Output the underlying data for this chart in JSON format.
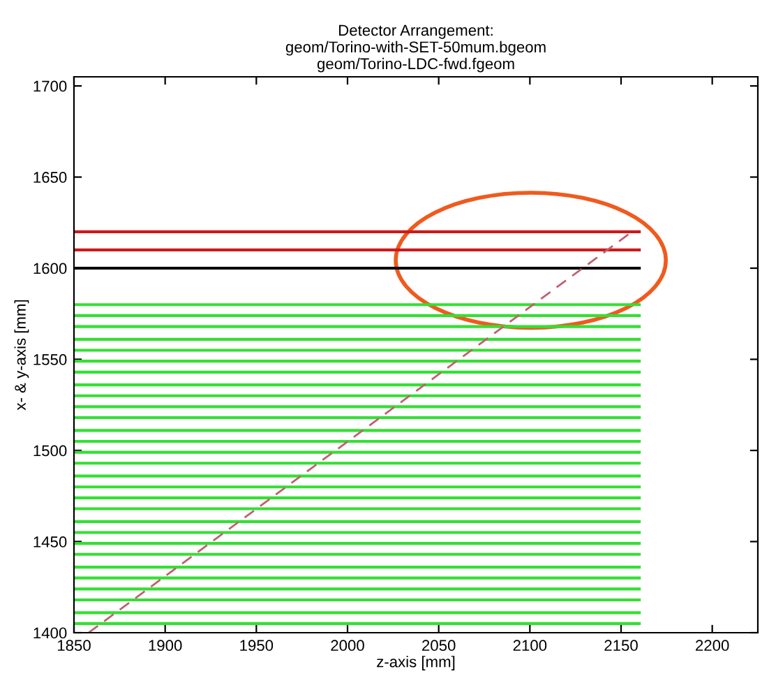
{
  "chart_data": {
    "type": "line",
    "title": "Detector Arrangement:\ngeom/Torino-with-SET-50mum.bgeom\ngeom/Torino-LDC-fwd.fgeom",
    "xlabel": "z-axis [mm]",
    "ylabel": "x- & y-axis [mm]",
    "xlim": [
      1850,
      2225
    ],
    "ylim": [
      1400,
      1705
    ],
    "xticks": [
      1850,
      1900,
      1950,
      2000,
      2050,
      2100,
      2150,
      2200
    ],
    "yticks": [
      1400,
      1450,
      1500,
      1550,
      1600,
      1650,
      1700
    ],
    "grid": false,
    "legend": false,
    "marker": "none",
    "series": [
      {
        "color": "#cc1a1a",
        "x": [
          1850,
          2160
        ],
        "values": [
          1620,
          1620
        ]
      },
      {
        "color": "#cc1a1a",
        "x": [
          1850,
          2160
        ],
        "values": [
          1610,
          1610
        ]
      },
      {
        "color": "#000000",
        "x": [
          1850,
          2160
        ],
        "values": [
          1600,
          1600
        ]
      },
      {
        "color": "#33e033",
        "x": [
          1850,
          2160
        ],
        "values": [
          1580,
          1580
        ]
      },
      {
        "color": "#33e033",
        "x": [
          1850,
          2160
        ],
        "values": [
          1574,
          1574
        ]
      },
      {
        "color": "#33e033",
        "x": [
          1850,
          2160
        ],
        "values": [
          1568,
          1568
        ]
      },
      {
        "color": "#33e033",
        "x": [
          1850,
          2160
        ],
        "values": [
          1561,
          1561
        ]
      },
      {
        "color": "#33e033",
        "x": [
          1850,
          2160
        ],
        "values": [
          1555,
          1555
        ]
      },
      {
        "color": "#33e033",
        "x": [
          1850,
          2160
        ],
        "values": [
          1549,
          1549
        ]
      },
      {
        "color": "#33e033",
        "x": [
          1850,
          2160
        ],
        "values": [
          1543,
          1543
        ]
      },
      {
        "color": "#33e033",
        "x": [
          1850,
          2160
        ],
        "values": [
          1536,
          1536
        ]
      },
      {
        "color": "#33e033",
        "x": [
          1850,
          2160
        ],
        "values": [
          1530,
          1530
        ]
      },
      {
        "color": "#33e033",
        "x": [
          1850,
          2160
        ],
        "values": [
          1524,
          1524
        ]
      },
      {
        "color": "#33e033",
        "x": [
          1850,
          2160
        ],
        "values": [
          1518,
          1518
        ]
      },
      {
        "color": "#33e033",
        "x": [
          1850,
          2160
        ],
        "values": [
          1511,
          1511
        ]
      },
      {
        "color": "#33e033",
        "x": [
          1850,
          2160
        ],
        "values": [
          1505,
          1505
        ]
      },
      {
        "color": "#33e033",
        "x": [
          1850,
          2160
        ],
        "values": [
          1499,
          1499
        ]
      },
      {
        "color": "#33e033",
        "x": [
          1850,
          2160
        ],
        "values": [
          1493,
          1493
        ]
      },
      {
        "color": "#33e033",
        "x": [
          1850,
          2160
        ],
        "values": [
          1486,
          1486
        ]
      },
      {
        "color": "#33e033",
        "x": [
          1850,
          2160
        ],
        "values": [
          1480,
          1480
        ]
      },
      {
        "color": "#33e033",
        "x": [
          1850,
          2160
        ],
        "values": [
          1474,
          1474
        ]
      },
      {
        "color": "#33e033",
        "x": [
          1850,
          2160
        ],
        "values": [
          1468,
          1468
        ]
      },
      {
        "color": "#33e033",
        "x": [
          1850,
          2160
        ],
        "values": [
          1461,
          1461
        ]
      },
      {
        "color": "#33e033",
        "x": [
          1850,
          2160
        ],
        "values": [
          1455,
          1455
        ]
      },
      {
        "color": "#33e033",
        "x": [
          1850,
          2160
        ],
        "values": [
          1449,
          1449
        ]
      },
      {
        "color": "#33e033",
        "x": [
          1850,
          2160
        ],
        "values": [
          1443,
          1443
        ]
      },
      {
        "color": "#33e033",
        "x": [
          1850,
          2160
        ],
        "values": [
          1436,
          1436
        ]
      },
      {
        "color": "#33e033",
        "x": [
          1850,
          2160
        ],
        "values": [
          1430,
          1430
        ]
      },
      {
        "color": "#33e033",
        "x": [
          1850,
          2160
        ],
        "values": [
          1424,
          1424
        ]
      },
      {
        "color": "#33e033",
        "x": [
          1850,
          2160
        ],
        "values": [
          1418,
          1418
        ]
      },
      {
        "color": "#33e033",
        "x": [
          1850,
          2160
        ],
        "values": [
          1411,
          1411
        ]
      },
      {
        "color": "#33e033",
        "x": [
          1850,
          2160
        ],
        "values": [
          1405,
          1405
        ]
      },
      {
        "color": "#c06070",
        "line_style": "dashed",
        "x": [
          1858,
          2156
        ],
        "values": [
          1400,
          1620
        ]
      }
    ]
  }
}
